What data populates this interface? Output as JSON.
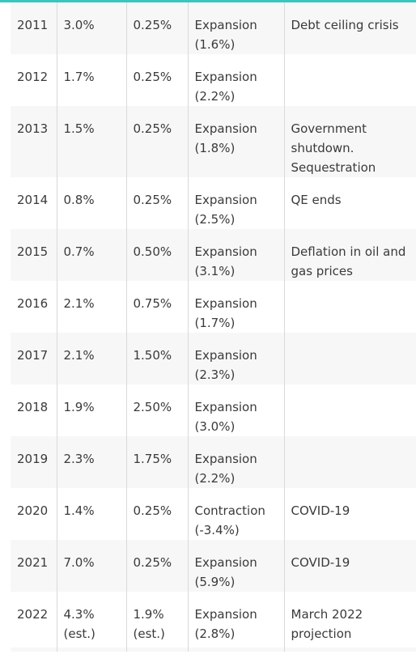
{
  "colors": {
    "accent": "#39c5c0",
    "row_shade": "#f7f7f7",
    "divider": "#d9d9d9",
    "text": "#3a3a3a"
  },
  "rows": [
    {
      "year": "2011",
      "gdp": "3.0%",
      "rate": "0.25%",
      "phase": "Expansion (1.6%)",
      "event": "Debt ceiling crisis"
    },
    {
      "year": "2012",
      "gdp": "1.7%",
      "rate": "0.25%",
      "phase": "Expansion (2.2%)",
      "event": ""
    },
    {
      "year": "2013",
      "gdp": "1.5%",
      "rate": "0.25%",
      "phase": "Expansion (1.8%)",
      "event": "Government shutdown. Sequestration"
    },
    {
      "year": "2014",
      "gdp": "0.8%",
      "rate": "0.25%",
      "phase": "Expansion (2.5%)",
      "event": "QE ends"
    },
    {
      "year": "2015",
      "gdp": "0.7%",
      "rate": "0.50%",
      "phase": "Expansion (3.1%)",
      "event": "Deflation in oil and gas prices"
    },
    {
      "year": "2016",
      "gdp": "2.1%",
      "rate": "0.75%",
      "phase": "Expansion (1.7%)",
      "event": ""
    },
    {
      "year": "2017",
      "gdp": "2.1%",
      "rate": "1.50%",
      "phase": "Expansion (2.3%)",
      "event": ""
    },
    {
      "year": "2018",
      "gdp": "1.9%",
      "rate": "2.50%",
      "phase": "Expansion (3.0%)",
      "event": ""
    },
    {
      "year": "2019",
      "gdp": "2.3%",
      "rate": "1.75%",
      "phase": "Expansion (2.2%)",
      "event": ""
    },
    {
      "year": "2020",
      "gdp": "1.4%",
      "rate": "0.25%",
      "phase": "Contraction (-3.4%)",
      "event": "COVID-19"
    },
    {
      "year": "2021",
      "gdp": "7.0%",
      "rate": "0.25%",
      "phase": "Expansion (5.9%)",
      "event": "COVID-19"
    },
    {
      "year": "2022",
      "gdp": "4.3% (est.)",
      "rate": "1.9% (est.)",
      "phase": "Expansion (2.8%)",
      "event": "March 2022 projection"
    }
  ]
}
